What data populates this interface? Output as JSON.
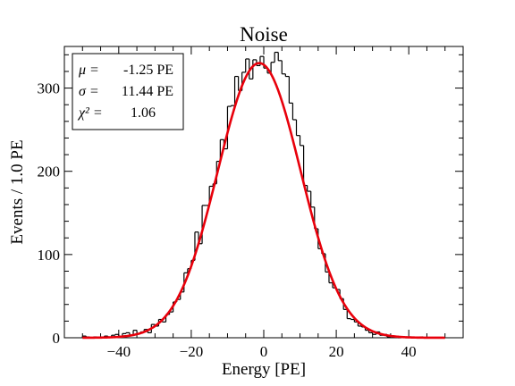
{
  "chart_data": {
    "type": "histogram-with-fit",
    "title": "Noise",
    "xlabel": "Energy [PE]",
    "ylabel": "Events / 1.0 PE",
    "xlim": [
      -55,
      55
    ],
    "ylim": [
      0,
      350
    ],
    "x_ticks": [
      -40,
      -20,
      0,
      20,
      40
    ],
    "y_ticks": [
      0,
      100,
      200,
      300
    ],
    "bin_width": 1.0,
    "bin_edges": [
      -50,
      -49,
      -48,
      -47,
      -46,
      -45,
      -44,
      -43,
      -42,
      -41,
      -40,
      -39,
      -38,
      -37,
      -36,
      -35,
      -34,
      -33,
      -32,
      -31,
      -30,
      -29,
      -28,
      -27,
      -26,
      -25,
      -24,
      -23,
      -22,
      -21,
      -20,
      -19,
      -18,
      -17,
      -16,
      -15,
      -14,
      -13,
      -12,
      -11,
      -10,
      -9,
      -8,
      -7,
      -6,
      -5,
      -4,
      -3,
      -2,
      -1,
      0,
      1,
      2,
      3,
      4,
      5,
      6,
      7,
      8,
      9,
      10,
      11,
      12,
      13,
      14,
      15,
      16,
      17,
      18,
      19,
      20,
      21,
      22,
      23,
      24,
      25,
      26,
      27,
      28,
      29,
      30,
      31,
      32,
      33,
      34,
      35,
      36,
      37,
      38,
      39,
      40,
      41,
      42,
      43,
      44,
      45,
      46,
      47,
      48,
      49,
      50
    ],
    "counts": [
      2,
      1,
      0,
      1,
      0,
      1,
      2,
      1,
      3,
      4,
      2,
      5,
      6,
      3,
      9,
      5,
      7,
      10,
      6,
      16,
      14,
      22,
      19,
      28,
      31,
      43,
      46,
      55,
      78,
      83,
      93,
      127,
      113,
      159,
      159,
      182,
      185,
      212,
      238,
      227,
      278,
      279,
      314,
      297,
      319,
      335,
      311,
      334,
      327,
      338,
      324,
      318,
      331,
      343,
      333,
      317,
      314,
      282,
      262,
      243,
      231,
      183,
      176,
      157,
      131,
      107,
      101,
      79,
      66,
      60,
      58,
      47,
      34,
      23,
      22,
      19,
      14,
      13,
      9,
      6,
      4,
      7,
      3,
      4,
      1,
      2,
      1,
      0,
      1,
      0,
      1,
      0,
      0,
      1,
      0,
      0,
      0,
      0,
      0,
      0
    ],
    "series": [
      {
        "name": "",
        "kind": "histogram",
        "color": "#000000"
      },
      {
        "name": "",
        "kind": "gaussian-fit",
        "color": "#e8000b",
        "mu": -1.25,
        "sigma": 11.44,
        "amplitude": 330,
        "x_range": [
          -50,
          50
        ]
      }
    ],
    "stats_box": {
      "location": "top-left",
      "lines": [
        {
          "symbol": "μ =",
          "value": "-1.25 PE"
        },
        {
          "symbol": "σ =",
          "value": "11.44 PE"
        },
        {
          "symbol": "χ² =",
          "value": "1.06"
        }
      ]
    },
    "grid": false,
    "legend": "none"
  }
}
